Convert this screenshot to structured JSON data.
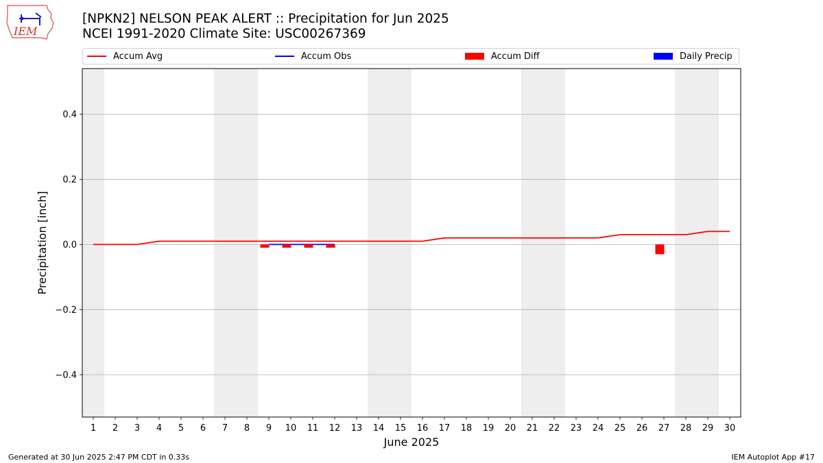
{
  "title_line1": "[NPKN2] NELSON PEAK ALERT :: Precipitation for Jun 2025",
  "title_line2": "NCEI 1991-2020 Climate Site: USC00267369",
  "logo_text": "IEM",
  "footer_left": "Generated at 30 Jun 2025 2:47 PM CDT in 0.33s",
  "footer_right": "IEM Autoplot App #17",
  "colors": {
    "avg": "#ff0000",
    "obs": "#0000ff",
    "diff": "#ff0000",
    "daily": "#0000ff",
    "weekend": "#eeeeee",
    "grid": "#b0b0b0"
  },
  "chart_data": {
    "type": "line",
    "xlabel": "June 2025",
    "ylabel": "Precipitation [inch]",
    "xlim": [
      0.5,
      30.5
    ],
    "ylim": [
      -0.53,
      0.54
    ],
    "yticks": [
      0.4,
      0.2,
      0.0,
      -0.2,
      -0.4
    ],
    "ytick_labels": [
      "0.4",
      "0.2",
      "0.0",
      "−0.2",
      "−0.4"
    ],
    "x": [
      1,
      2,
      3,
      4,
      5,
      6,
      7,
      8,
      9,
      10,
      11,
      12,
      13,
      14,
      15,
      16,
      17,
      18,
      19,
      20,
      21,
      22,
      23,
      24,
      25,
      26,
      27,
      28,
      29,
      30
    ],
    "grid": "horizontal",
    "legend_position": "top",
    "weekend_days": [
      1,
      7,
      8,
      14,
      15,
      21,
      22,
      28,
      29
    ],
    "legend": [
      {
        "label": "Accum Avg",
        "kind": "line",
        "color": "#ff0000"
      },
      {
        "label": "Accum Obs",
        "kind": "line",
        "color": "#0000ff"
      },
      {
        "label": "Accum Diff",
        "kind": "bar",
        "color": "#ff0000"
      },
      {
        "label": "Daily Precip",
        "kind": "bar",
        "color": "#0000ff"
      }
    ],
    "series": [
      {
        "name": "Accum Avg",
        "kind": "line",
        "x": [
          1,
          2,
          3,
          4,
          5,
          6,
          7,
          8,
          9,
          10,
          11,
          12,
          13,
          14,
          15,
          16,
          17,
          18,
          19,
          20,
          21,
          22,
          23,
          24,
          25,
          26,
          27,
          28,
          29,
          30
        ],
        "values": [
          0.0,
          0.0,
          0.0,
          0.01,
          0.01,
          0.01,
          0.01,
          0.01,
          0.01,
          0.01,
          0.01,
          0.01,
          0.01,
          0.01,
          0.01,
          0.01,
          0.02,
          0.02,
          0.02,
          0.02,
          0.02,
          0.02,
          0.02,
          0.02,
          0.03,
          0.03,
          0.03,
          0.03,
          0.04,
          0.04
        ]
      },
      {
        "name": "Accum Obs",
        "kind": "line",
        "x": [
          9,
          10,
          11,
          12
        ],
        "values": [
          0.0,
          0.0,
          0.0,
          0.0
        ]
      },
      {
        "name": "Accum Diff",
        "kind": "bar",
        "x": [
          9,
          10,
          11,
          12,
          27
        ],
        "values": [
          -0.01,
          -0.01,
          -0.01,
          -0.01,
          -0.03
        ]
      },
      {
        "name": "Daily Precip",
        "kind": "bar",
        "x": [],
        "values": []
      }
    ]
  }
}
